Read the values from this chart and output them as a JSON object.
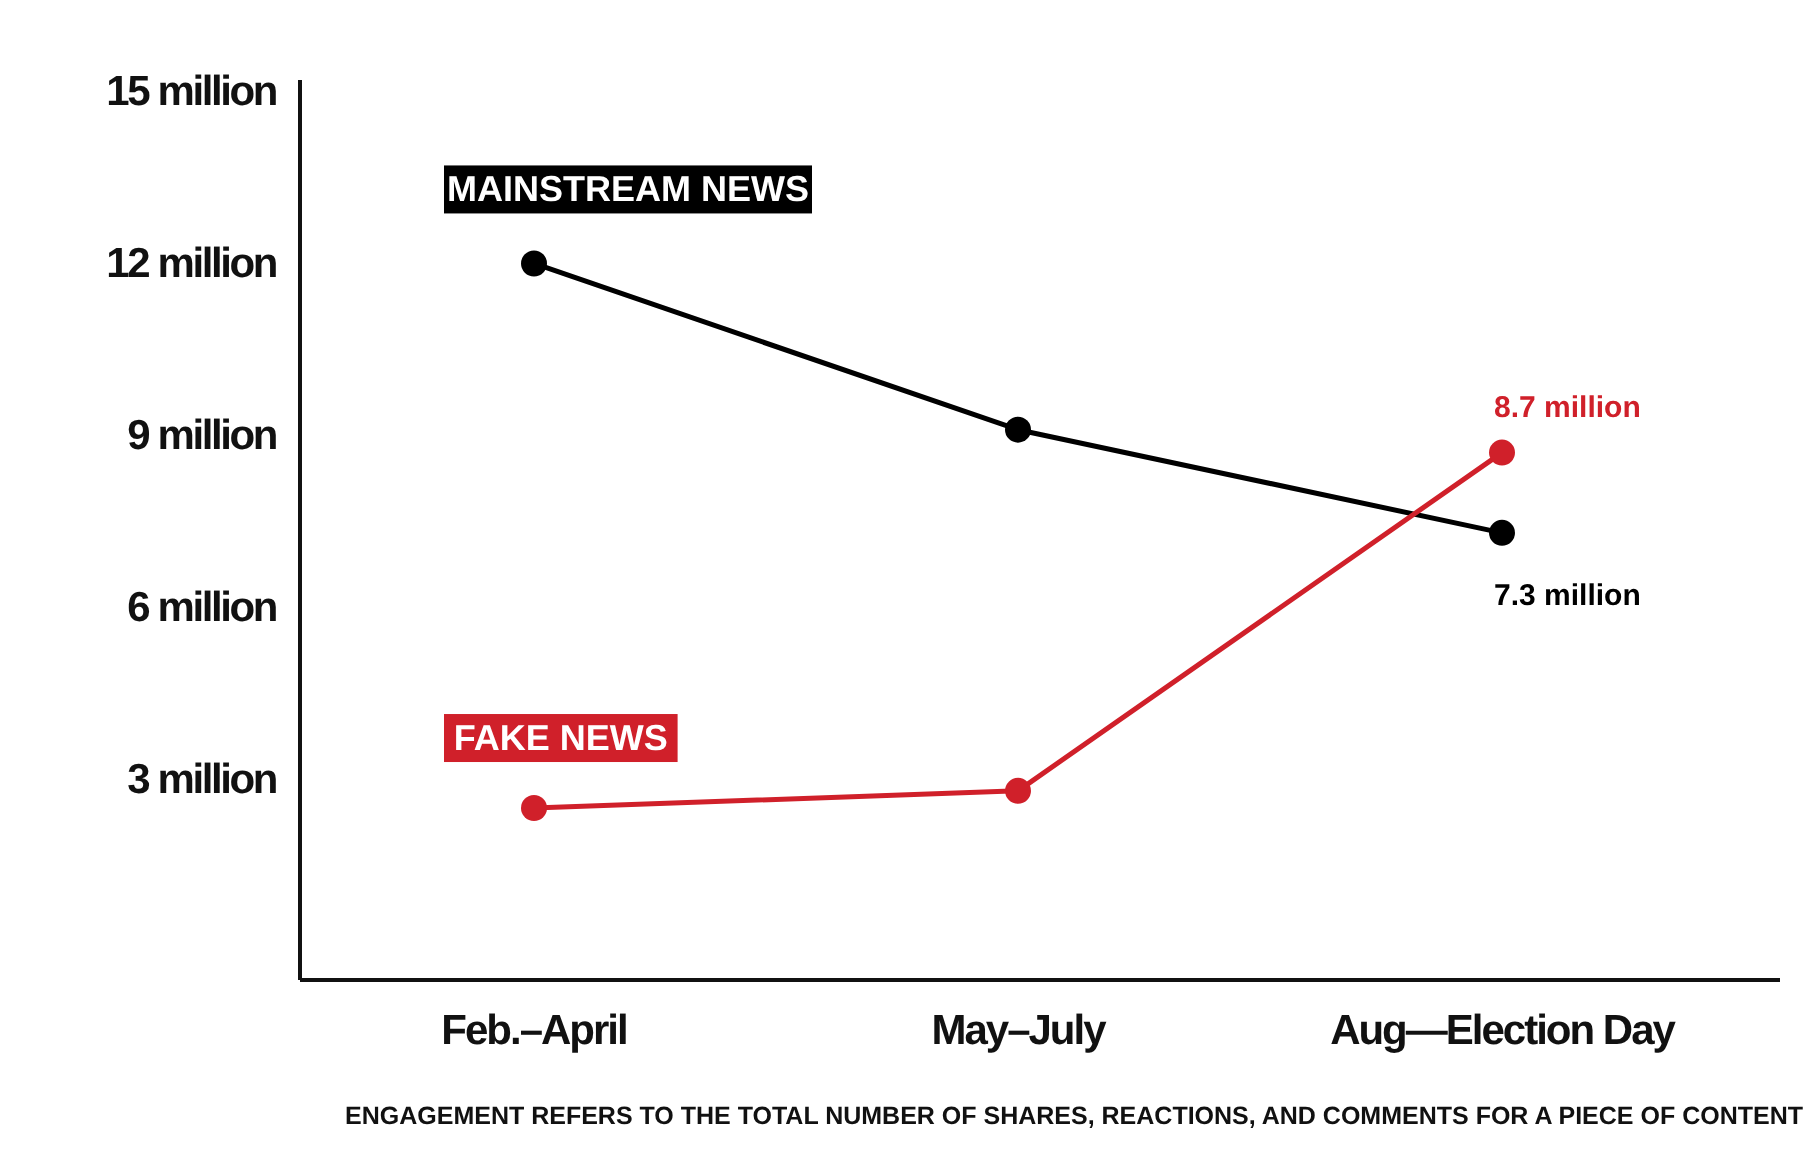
{
  "chart_data": {
    "type": "line",
    "categories": [
      "Feb.–April",
      "May–July",
      "Aug—Election Day"
    ],
    "series": [
      {
        "name": "MAINSTREAM NEWS",
        "color": "#000000",
        "values": [
          12,
          9.1,
          7.3
        ],
        "value_labels": [
          null,
          null,
          "7.3 million"
        ]
      },
      {
        "name": "FAKE NEWS",
        "color": "#d0202a",
        "values": [
          2.5,
          2.8,
          8.7
        ],
        "value_labels": [
          null,
          null,
          "8.7 million"
        ]
      }
    ],
    "ylim": [
      -0.5,
      15.2
    ],
    "yticks": [
      {
        "value": 3,
        "label": "3 million"
      },
      {
        "value": 6,
        "label": "6 million"
      },
      {
        "value": 9,
        "label": "9 million"
      },
      {
        "value": 12,
        "label": "12 million"
      },
      {
        "value": 15,
        "label": "15 million"
      }
    ],
    "grid": false,
    "marker": "circle",
    "line_style": "solid",
    "annotations": [
      "ENGAGEMENT REFERS TO THE TOTAL NUMBER OF SHARES, REACTIONS, AND COMMENTS FOR A PIECE OF CONTENT"
    ]
  }
}
